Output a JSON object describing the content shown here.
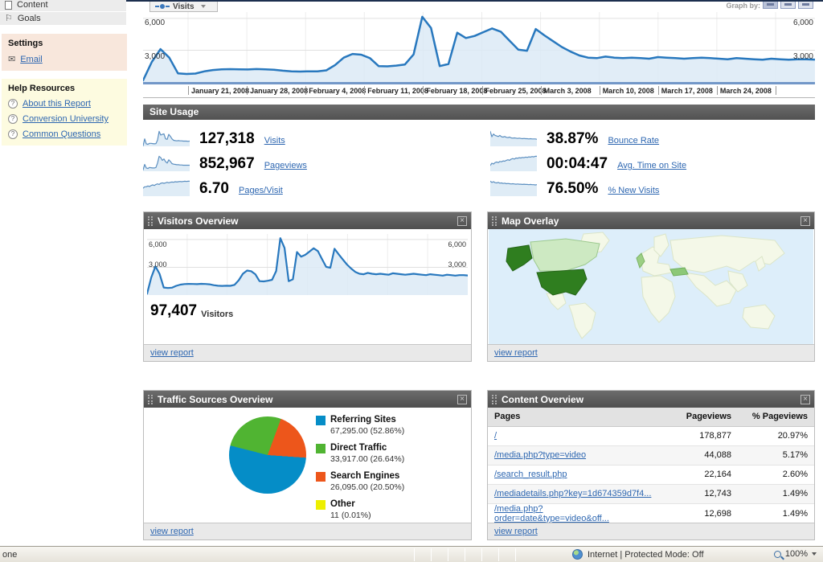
{
  "icons": {
    "close": "×",
    "help_q": "?",
    "email": "✉",
    "flag": "⚐"
  },
  "sidebar": {
    "nav": [
      {
        "label": "Content"
      },
      {
        "label": "Goals"
      }
    ],
    "settings": {
      "title": "Settings",
      "email": "Email"
    },
    "help": {
      "title": "Help Resources",
      "links": [
        "About this Report",
        "Conversion University",
        "Common Questions"
      ]
    }
  },
  "timeline": {
    "tab": "Visits",
    "graph_by": "Graph by:",
    "left_ticks": [
      "6,000",
      "3,000"
    ],
    "right_ticks": [
      "6,000",
      "3,000"
    ]
  },
  "site_usage": {
    "title": "Site Usage",
    "metrics": [
      {
        "value": "127,318",
        "label": "Visits",
        "spark": "visits"
      },
      {
        "value": "852,967",
        "label": "Pageviews",
        "spark": "pageviews"
      },
      {
        "value": "6.70",
        "label": "Pages/Visit",
        "spark": "pages_visit"
      },
      {
        "value": "38.87%",
        "label": "Bounce Rate",
        "spark": "bounce"
      },
      {
        "value": "00:04:47",
        "label": "Avg. Time on Site",
        "spark": "time_on_site"
      },
      {
        "value": "76.50%",
        "label": "% New Visits",
        "spark": "new_visits"
      }
    ]
  },
  "panels": {
    "visitors": {
      "title": "Visitors Overview",
      "value": "97,407",
      "unit": "Visitors",
      "view_report": "view report"
    },
    "map": {
      "title": "Map Overlay",
      "view_report": "view report"
    },
    "traffic": {
      "title": "Traffic Sources Overview",
      "legend": [
        {
          "label": "Referring Sites",
          "detail": "67,295.00 (52.86%)",
          "color": "#058DC7"
        },
        {
          "label": "Direct Traffic",
          "detail": "33,917.00 (26.64%)",
          "color": "#50B432"
        },
        {
          "label": "Search Engines",
          "detail": "26,095.00 (20.50%)",
          "color": "#ED561B"
        },
        {
          "label": "Other",
          "detail": "11 (0.01%)",
          "color": "#EDEF00"
        }
      ],
      "view_report": "view report"
    },
    "content": {
      "title": "Content Overview",
      "columns": [
        "Pages",
        "Pageviews",
        "% Pageviews"
      ],
      "rows": [
        {
          "page": "/",
          "pageviews": "178,877",
          "pct": "20.97%"
        },
        {
          "page": "/media.php?type=video",
          "pageviews": "44,088",
          "pct": "5.17%"
        },
        {
          "page": "/search_result.php",
          "pageviews": "22,164",
          "pct": "2.60%"
        },
        {
          "page": "/mediadetails.php?key=1d674359d7f4...",
          "pageviews": "12,743",
          "pct": "1.49%"
        },
        {
          "page": "/media.php?order=date&type=video&off...",
          "pageviews": "12,698",
          "pct": "1.49%"
        }
      ],
      "view_report": "view report"
    }
  },
  "statusbar": {
    "left": "one",
    "zone": "Internet | Protected Mode: Off",
    "zoom": "100%"
  },
  "chart_data": [
    {
      "id": "visits_timeline",
      "type": "area",
      "title": "Visits",
      "x_labels": [
        "January 21, 2008",
        "January 28, 2008",
        "February 4, 2008",
        "February 11, 2008",
        "February 18, 2008",
        "February 25, 2008",
        "March 3, 2008",
        "March 10, 2008",
        "March 17, 2008",
        "March 24, 2008"
      ],
      "y_ticks": [
        3000,
        6000
      ],
      "ylim": [
        0,
        6600
      ],
      "grid": true,
      "legend_position": "none",
      "line_color": "#2878be",
      "fill_color": "#dceaf6",
      "values": [
        150,
        1900,
        3100,
        2300,
        820,
        760,
        800,
        1000,
        1130,
        1190,
        1210,
        1200,
        1180,
        1220,
        1200,
        1160,
        1070,
        1010,
        990,
        1010,
        1000,
        1100,
        1600,
        2300,
        2650,
        2580,
        2250,
        1500,
        1480,
        1550,
        1650,
        2600,
        6150,
        5100,
        1500,
        1700,
        4650,
        4150,
        4350,
        4700,
        5050,
        4750,
        3900,
        3050,
        2950,
        5000,
        4400,
        3850,
        3300,
        2870,
        2500,
        2300,
        2250,
        2400,
        2300,
        2250,
        2300,
        2250,
        2200,
        2350,
        2300,
        2250,
        2200,
        2250,
        2300,
        2250,
        2200,
        2150,
        2250,
        2200,
        2150,
        2100,
        2200,
        2150,
        2100,
        2150,
        2150,
        2120
      ]
    },
    {
      "id": "visitors_overview",
      "type": "area",
      "title": "Visitors Overview",
      "y_ticks": [
        3000,
        6000
      ],
      "y_tick_labels": [
        "6,000",
        "3,000"
      ],
      "ylim": [
        0,
        6600
      ],
      "grid": true,
      "line_color": "#2878be",
      "fill_color": "#dceaf6",
      "values": [
        150,
        1900,
        3100,
        2300,
        820,
        760,
        800,
        1000,
        1130,
        1190,
        1210,
        1200,
        1180,
        1220,
        1200,
        1160,
        1070,
        1010,
        990,
        1010,
        1000,
        1100,
        1600,
        2300,
        2650,
        2580,
        2250,
        1500,
        1480,
        1550,
        1650,
        2600,
        6150,
        5100,
        1500,
        1700,
        4650,
        4150,
        4350,
        4700,
        5050,
        4750,
        3900,
        3050,
        2950,
        5000,
        4400,
        3850,
        3300,
        2870,
        2500,
        2300,
        2250,
        2400,
        2300,
        2250,
        2300,
        2250,
        2200,
        2350,
        2300,
        2250,
        2200,
        2250,
        2300,
        2250,
        2200,
        2150,
        2250,
        2200,
        2150,
        2100,
        2200,
        2150,
        2100,
        2150,
        2150,
        2120
      ]
    },
    {
      "id": "traffic_sources_pie",
      "type": "pie",
      "title": "Traffic Sources Overview",
      "start_angle_deg": 94,
      "slices": [
        {
          "label": "Referring Sites",
          "value": 67295.0,
          "pct": 52.86,
          "color": "#058DC7"
        },
        {
          "label": "Direct Traffic",
          "value": 33917.0,
          "pct": 26.64,
          "color": "#50B432"
        },
        {
          "label": "Search Engines",
          "value": 26095.0,
          "pct": 20.5,
          "color": "#ED561B"
        },
        {
          "label": "Other",
          "value": 11,
          "pct": 0.01,
          "color": "#EDEF00"
        }
      ]
    },
    {
      "id": "content_overview_table",
      "type": "table",
      "title": "Content Overview",
      "columns": [
        "Pages",
        "Pageviews",
        "% Pageviews"
      ],
      "rows": [
        [
          "/",
          178877,
          "20.97%"
        ],
        [
          "/media.php?type=video",
          44088,
          "5.17%"
        ],
        [
          "/search_result.php",
          22164,
          "2.60%"
        ],
        [
          "/mediadetails.php?key=1d674359d7f4...",
          12743,
          "1.49%"
        ],
        [
          "/media.php?order=date&type=video&off...",
          12698,
          "1.49%"
        ]
      ]
    },
    {
      "id": "sparklines",
      "type": "line",
      "series": [
        {
          "name": "visits",
          "values": [
            2,
            30,
            10,
            8,
            12,
            12,
            11,
            10,
            11,
            25,
            60,
            45,
            48,
            50,
            30,
            28,
            48,
            40,
            30,
            24,
            23,
            22,
            23,
            22,
            22,
            21,
            21,
            21,
            20,
            21
          ]
        },
        {
          "name": "pageviews",
          "values": [
            5,
            25,
            12,
            10,
            14,
            13,
            12,
            12,
            14,
            30,
            55,
            50,
            40,
            45,
            35,
            30,
            42,
            36,
            28,
            26,
            25,
            24,
            24,
            23,
            23,
            22,
            22,
            22,
            22,
            22
          ]
        },
        {
          "name": "pages_visit",
          "values": [
            30,
            35,
            35,
            38,
            36,
            40,
            42,
            40,
            44,
            46,
            44,
            48,
            50,
            48,
            50,
            52,
            50,
            52,
            53,
            52,
            54,
            53,
            54,
            55,
            54,
            55,
            56,
            55,
            56,
            56
          ]
        },
        {
          "name": "bounce",
          "values": [
            55,
            35,
            45,
            40,
            38,
            36,
            40,
            35,
            34,
            36,
            33,
            32,
            34,
            31,
            30,
            31,
            30,
            29,
            30,
            29,
            28,
            29,
            28,
            28,
            27,
            28,
            27,
            27,
            27,
            26
          ]
        },
        {
          "name": "time_on_site",
          "values": [
            20,
            28,
            25,
            30,
            32,
            30,
            34,
            33,
            36,
            35,
            38,
            40,
            38,
            42,
            44,
            42,
            46,
            45,
            47,
            46,
            48,
            47,
            49,
            48,
            50,
            49,
            51,
            50,
            52,
            52
          ]
        },
        {
          "name": "new_visits",
          "values": [
            60,
            55,
            58,
            54,
            53,
            55,
            52,
            53,
            51,
            52,
            50,
            51,
            50,
            49,
            50,
            49,
            48,
            49,
            48,
            48,
            47,
            48,
            47,
            47,
            46,
            47,
            46,
            46,
            45,
            46
          ]
        }
      ]
    }
  ]
}
